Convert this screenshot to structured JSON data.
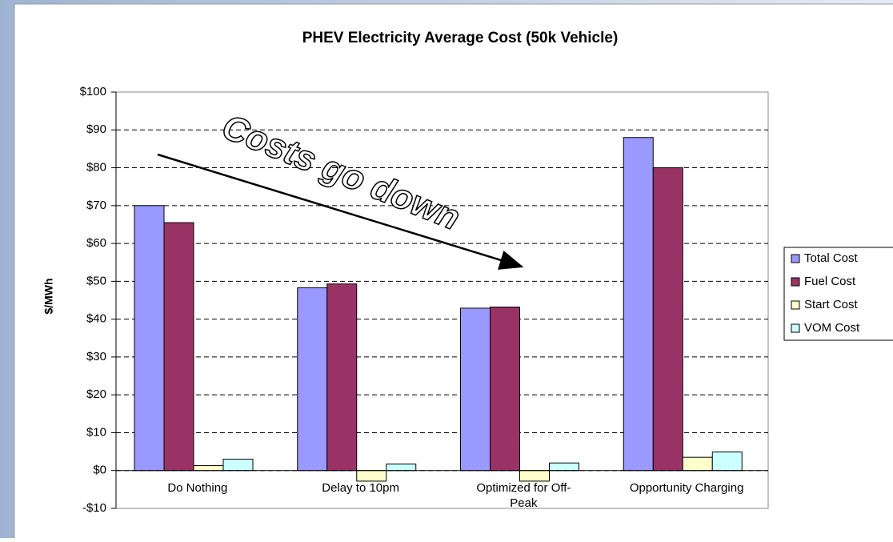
{
  "chart_data": {
    "type": "bar",
    "title": "PHEV Electricity Average Cost (50k Vehicle)",
    "y_label": "$/MWh",
    "annotation": "Costs go down",
    "categories": [
      "Do Nothing",
      "Delay to 10pm",
      "Optimized for Off-Peak",
      "Opportunity Charging"
    ],
    "series": [
      {
        "name": "Total Cost",
        "color": "#9999ff",
        "values": [
          70,
          48.3,
          42.9,
          88
        ]
      },
      {
        "name": "Fuel Cost",
        "color": "#993366",
        "values": [
          65.5,
          49.3,
          43.2,
          80
        ]
      },
      {
        "name": "Start Cost",
        "color": "#ffffcc",
        "values": [
          1.3,
          -2.8,
          -2.8,
          3.5
        ]
      },
      {
        "name": "VOM Cost",
        "color": "#ccffff",
        "values": [
          3,
          1.7,
          2,
          4.9
        ]
      }
    ],
    "ylim": [
      -10,
      100
    ],
    "yticks": [
      {
        "value": -10,
        "label": "-$10"
      },
      {
        "value": 0,
        "label": "$0"
      },
      {
        "value": 10,
        "label": "$10"
      },
      {
        "value": 20,
        "label": "$20"
      },
      {
        "value": 30,
        "label": "$30"
      },
      {
        "value": 40,
        "label": "$40"
      },
      {
        "value": 50,
        "label": "$50"
      },
      {
        "value": 60,
        "label": "$60"
      },
      {
        "value": 70,
        "label": "$70"
      },
      {
        "value": 80,
        "label": "$80"
      },
      {
        "value": 90,
        "label": "$90"
      },
      {
        "value": 100,
        "label": "$100"
      }
    ],
    "grid": true,
    "legend": "right"
  }
}
